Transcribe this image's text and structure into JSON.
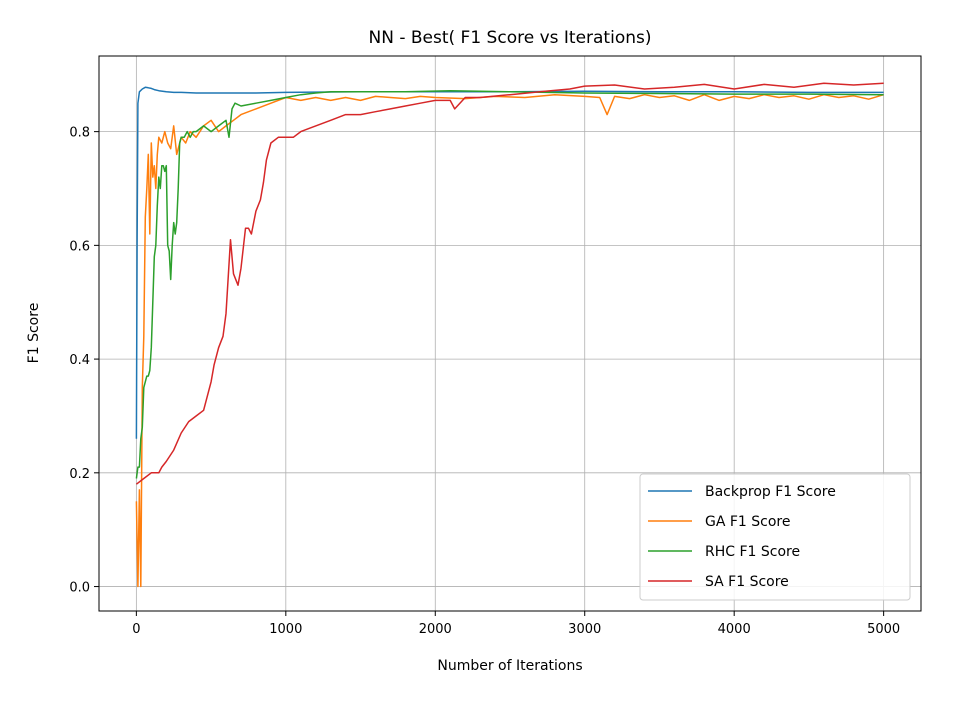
{
  "chart_data": {
    "type": "line",
    "title": "NN - Best( F1 Score vs Iterations)",
    "xlabel": "Number of Iterations",
    "ylabel": "F1 Score",
    "xlim": [
      -250,
      5250
    ],
    "ylim": [
      -0.043,
      0.933
    ],
    "xticks": [
      0,
      1000,
      2000,
      3000,
      4000,
      5000
    ],
    "xtick_labels": [
      "0",
      "1000",
      "2000",
      "3000",
      "4000",
      "5000"
    ],
    "yticks": [
      0.0,
      0.2,
      0.4,
      0.6,
      0.8
    ],
    "ytick_labels": [
      "0.0",
      "0.2",
      "0.4",
      "0.6",
      "0.8"
    ],
    "grid": true,
    "legend_position": "lower-right",
    "series": [
      {
        "name": "Backprop F1 Score",
        "color": "#1f77b4",
        "x": [
          0,
          5,
          10,
          20,
          40,
          60,
          80,
          100,
          120,
          150,
          200,
          250,
          300,
          400,
          500,
          600,
          800,
          1000,
          1500,
          2000,
          2500,
          3000,
          3500,
          4000,
          4500,
          5000
        ],
        "y": [
          0.26,
          0.6,
          0.85,
          0.87,
          0.875,
          0.878,
          0.877,
          0.876,
          0.874,
          0.872,
          0.87,
          0.869,
          0.869,
          0.868,
          0.868,
          0.868,
          0.868,
          0.869,
          0.87,
          0.87,
          0.87,
          0.871,
          0.87,
          0.87,
          0.869,
          0.869
        ]
      },
      {
        "name": "GA F1 Score",
        "color": "#ff7f0e",
        "x": [
          0,
          10,
          20,
          30,
          40,
          50,
          60,
          70,
          80,
          90,
          100,
          110,
          120,
          130,
          140,
          150,
          170,
          190,
          210,
          230,
          250,
          270,
          300,
          330,
          360,
          400,
          450,
          500,
          550,
          600,
          650,
          700,
          800,
          900,
          1000,
          1100,
          1200,
          1300,
          1400,
          1500,
          1600,
          1700,
          1800,
          1900,
          2000,
          2200,
          2400,
          2600,
          2800,
          3000,
          3100,
          3150,
          3200,
          3300,
          3400,
          3500,
          3600,
          3700,
          3800,
          3900,
          4000,
          4100,
          4200,
          4300,
          4400,
          4500,
          4600,
          4700,
          4800,
          4900,
          5000
        ],
        "y": [
          0.15,
          0.0,
          0.17,
          0.0,
          0.35,
          0.44,
          0.65,
          0.7,
          0.76,
          0.62,
          0.78,
          0.72,
          0.74,
          0.7,
          0.76,
          0.79,
          0.78,
          0.8,
          0.78,
          0.77,
          0.81,
          0.76,
          0.79,
          0.78,
          0.8,
          0.79,
          0.81,
          0.82,
          0.8,
          0.81,
          0.82,
          0.83,
          0.84,
          0.85,
          0.86,
          0.855,
          0.86,
          0.855,
          0.86,
          0.855,
          0.862,
          0.86,
          0.858,
          0.862,
          0.86,
          0.858,
          0.862,
          0.86,
          0.865,
          0.862,
          0.86,
          0.83,
          0.862,
          0.858,
          0.865,
          0.86,
          0.863,
          0.855,
          0.865,
          0.855,
          0.862,
          0.858,
          0.865,
          0.86,
          0.863,
          0.857,
          0.865,
          0.86,
          0.863,
          0.857,
          0.865
        ]
      },
      {
        "name": "RHC F1 Score",
        "color": "#2ca02c",
        "x": [
          0,
          10,
          20,
          30,
          40,
          50,
          60,
          70,
          80,
          90,
          100,
          110,
          120,
          130,
          140,
          150,
          160,
          170,
          180,
          190,
          200,
          210,
          220,
          230,
          240,
          250,
          260,
          270,
          280,
          290,
          300,
          320,
          340,
          360,
          380,
          400,
          450,
          500,
          550,
          600,
          620,
          640,
          660,
          700,
          800,
          900,
          1000,
          1100,
          1200,
          1300,
          1400,
          1500,
          1800,
          2100,
          2500,
          3000,
          3500,
          4000,
          4500,
          5000
        ],
        "y": [
          0.19,
          0.21,
          0.21,
          0.26,
          0.28,
          0.35,
          0.36,
          0.37,
          0.37,
          0.38,
          0.42,
          0.5,
          0.58,
          0.6,
          0.67,
          0.72,
          0.7,
          0.74,
          0.74,
          0.73,
          0.74,
          0.6,
          0.59,
          0.54,
          0.6,
          0.64,
          0.62,
          0.64,
          0.7,
          0.78,
          0.79,
          0.79,
          0.8,
          0.79,
          0.8,
          0.8,
          0.81,
          0.8,
          0.81,
          0.82,
          0.79,
          0.84,
          0.85,
          0.845,
          0.85,
          0.855,
          0.86,
          0.865,
          0.868,
          0.87,
          0.87,
          0.87,
          0.87,
          0.872,
          0.87,
          0.868,
          0.867,
          0.866,
          0.866,
          0.865
        ]
      },
      {
        "name": "SA F1 Score",
        "color": "#d62728",
        "x": [
          0,
          50,
          100,
          150,
          170,
          200,
          250,
          300,
          350,
          400,
          450,
          500,
          520,
          550,
          580,
          600,
          630,
          650,
          680,
          700,
          730,
          750,
          770,
          800,
          830,
          850,
          870,
          900,
          950,
          1000,
          1050,
          1100,
          1200,
          1300,
          1400,
          1500,
          1600,
          1700,
          1800,
          1900,
          2000,
          2100,
          2130,
          2200,
          2300,
          2500,
          2700,
          2900,
          3000,
          3200,
          3400,
          3600,
          3800,
          4000,
          4200,
          4400,
          4600,
          4800,
          5000
        ],
        "y": [
          0.18,
          0.19,
          0.2,
          0.2,
          0.21,
          0.22,
          0.24,
          0.27,
          0.29,
          0.3,
          0.31,
          0.36,
          0.39,
          0.42,
          0.44,
          0.48,
          0.61,
          0.55,
          0.53,
          0.56,
          0.63,
          0.63,
          0.62,
          0.66,
          0.68,
          0.71,
          0.75,
          0.78,
          0.79,
          0.79,
          0.79,
          0.8,
          0.81,
          0.82,
          0.83,
          0.83,
          0.835,
          0.84,
          0.845,
          0.85,
          0.855,
          0.855,
          0.84,
          0.86,
          0.86,
          0.865,
          0.87,
          0.875,
          0.88,
          0.882,
          0.875,
          0.878,
          0.883,
          0.875,
          0.883,
          0.878,
          0.885,
          0.882,
          0.885
        ]
      }
    ]
  }
}
